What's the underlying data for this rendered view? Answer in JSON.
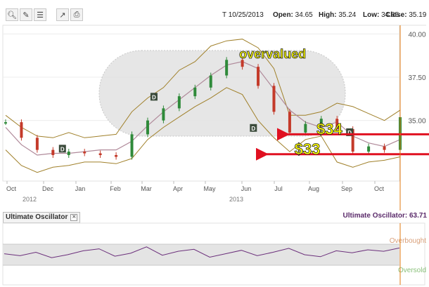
{
  "toolbar": {
    "icons": [
      "zoom-icon",
      "pencil-icon",
      "note-icon",
      "chart-settings-icon",
      "print-icon"
    ]
  },
  "quote": {
    "symbol_date": "T 10/25/2013",
    "open_label": "Open:",
    "open_value": "34.65",
    "high_label": "High:",
    "high_value": "35.24",
    "low_label": "Low:",
    "low_value": "34.65",
    "close_label": "Close:",
    "close_value": "35.19"
  },
  "indicator": {
    "tab_label": "Ultimate Oscillator",
    "value_label": "Ultimate Oscillator: 63.71",
    "overbought_label": "Overbought",
    "oversold_label": "Oversold"
  },
  "colors": {
    "price_up": "#2f8a3a",
    "price_down": "#c43a2a",
    "bollinger": "#a0802a",
    "moving_average": "#b08a9a",
    "annotation_arrow": "#e01020",
    "callout_text": "#ffff00",
    "oscillator_line": "#6b2f7b"
  },
  "chart_data": {
    "type": "line",
    "xlabel": "",
    "ylabel": "",
    "ylim": [
      31.5,
      40.5
    ],
    "y_ticks": [
      "40.00",
      "37.50",
      "35.00"
    ],
    "x_tick_labels": [
      "Oct",
      "Dec",
      "Jan",
      "Feb",
      "Mar",
      "Apr",
      "May",
      "Jun",
      "Jul",
      "Aug",
      "Sep",
      "Oct"
    ],
    "year_labels": [
      "2012",
      "2013"
    ],
    "series": [],
    "x": [
      0,
      1,
      2,
      3,
      4,
      5,
      6,
      7,
      8,
      9,
      10,
      11,
      12,
      13,
      14,
      15,
      16,
      17,
      18,
      19,
      20,
      21,
      22,
      23,
      24,
      25
    ],
    "close": [
      34.9,
      34.0,
      33.3,
      33.0,
      33.2,
      33.1,
      33.0,
      32.9,
      34.2,
      35.0,
      35.7,
      36.4,
      36.9,
      37.6,
      38.5,
      38.1,
      37.0,
      35.5,
      34.3,
      34.8,
      35.1,
      34.5,
      33.2,
      33.5,
      33.3,
      35.19
    ],
    "upper_band": [
      35.3,
      34.6,
      34.1,
      34.0,
      34.3,
      34.0,
      34.1,
      34.2,
      35.5,
      36.3,
      36.9,
      37.9,
      38.4,
      39.3,
      39.6,
      39.7,
      39.2,
      38.0,
      35.3,
      35.3,
      35.5,
      36.0,
      35.8,
      35.4,
      35.0,
      35.6
    ],
    "lower_band": [
      33.3,
      32.4,
      32.0,
      32.3,
      32.4,
      32.6,
      32.6,
      32.5,
      32.8,
      33.9,
      34.6,
      35.2,
      35.8,
      36.3,
      36.9,
      36.5,
      35.0,
      34.0,
      33.2,
      33.9,
      34.1,
      32.6,
      32.3,
      32.6,
      32.7,
      32.9
    ],
    "moving_average": [
      34.6,
      33.6,
      33.0,
      33.1,
      33.1,
      33.2,
      33.3,
      33.3,
      33.8,
      34.7,
      35.5,
      36.2,
      36.9,
      37.6,
      38.2,
      38.4,
      38.0,
      36.8,
      35.6,
      34.9,
      34.6,
      34.9,
      34.1,
      33.7,
      33.5,
      33.9
    ],
    "dividend_markers": [
      {
        "label": "D",
        "x": 3.6,
        "y": 33.35
      },
      {
        "label": "D",
        "x": 9.4,
        "y": 36.35
      },
      {
        "label": "D",
        "x": 15.7,
        "y": 34.55
      },
      {
        "label": "D",
        "x": 21.8,
        "y": 34.3
      }
    ],
    "annotations": [
      {
        "text": "overvalued",
        "x": 14.8,
        "y": 38.6
      },
      {
        "text": "$34",
        "x": 19.7,
        "y": 34.2
      },
      {
        "text": "$33",
        "x": 18.3,
        "y": 33.05
      }
    ],
    "reference_levels": [
      34.2,
      33.05
    ],
    "oscillator": {
      "value": 63.71,
      "values": [
        52,
        48,
        55,
        44,
        50,
        58,
        62,
        47,
        53,
        66,
        49,
        57,
        61,
        45,
        52,
        59,
        48,
        55,
        63,
        50,
        46,
        58,
        54,
        60,
        57,
        63.71
      ],
      "overbought_level": 70,
      "oversold_level": 30
    }
  }
}
